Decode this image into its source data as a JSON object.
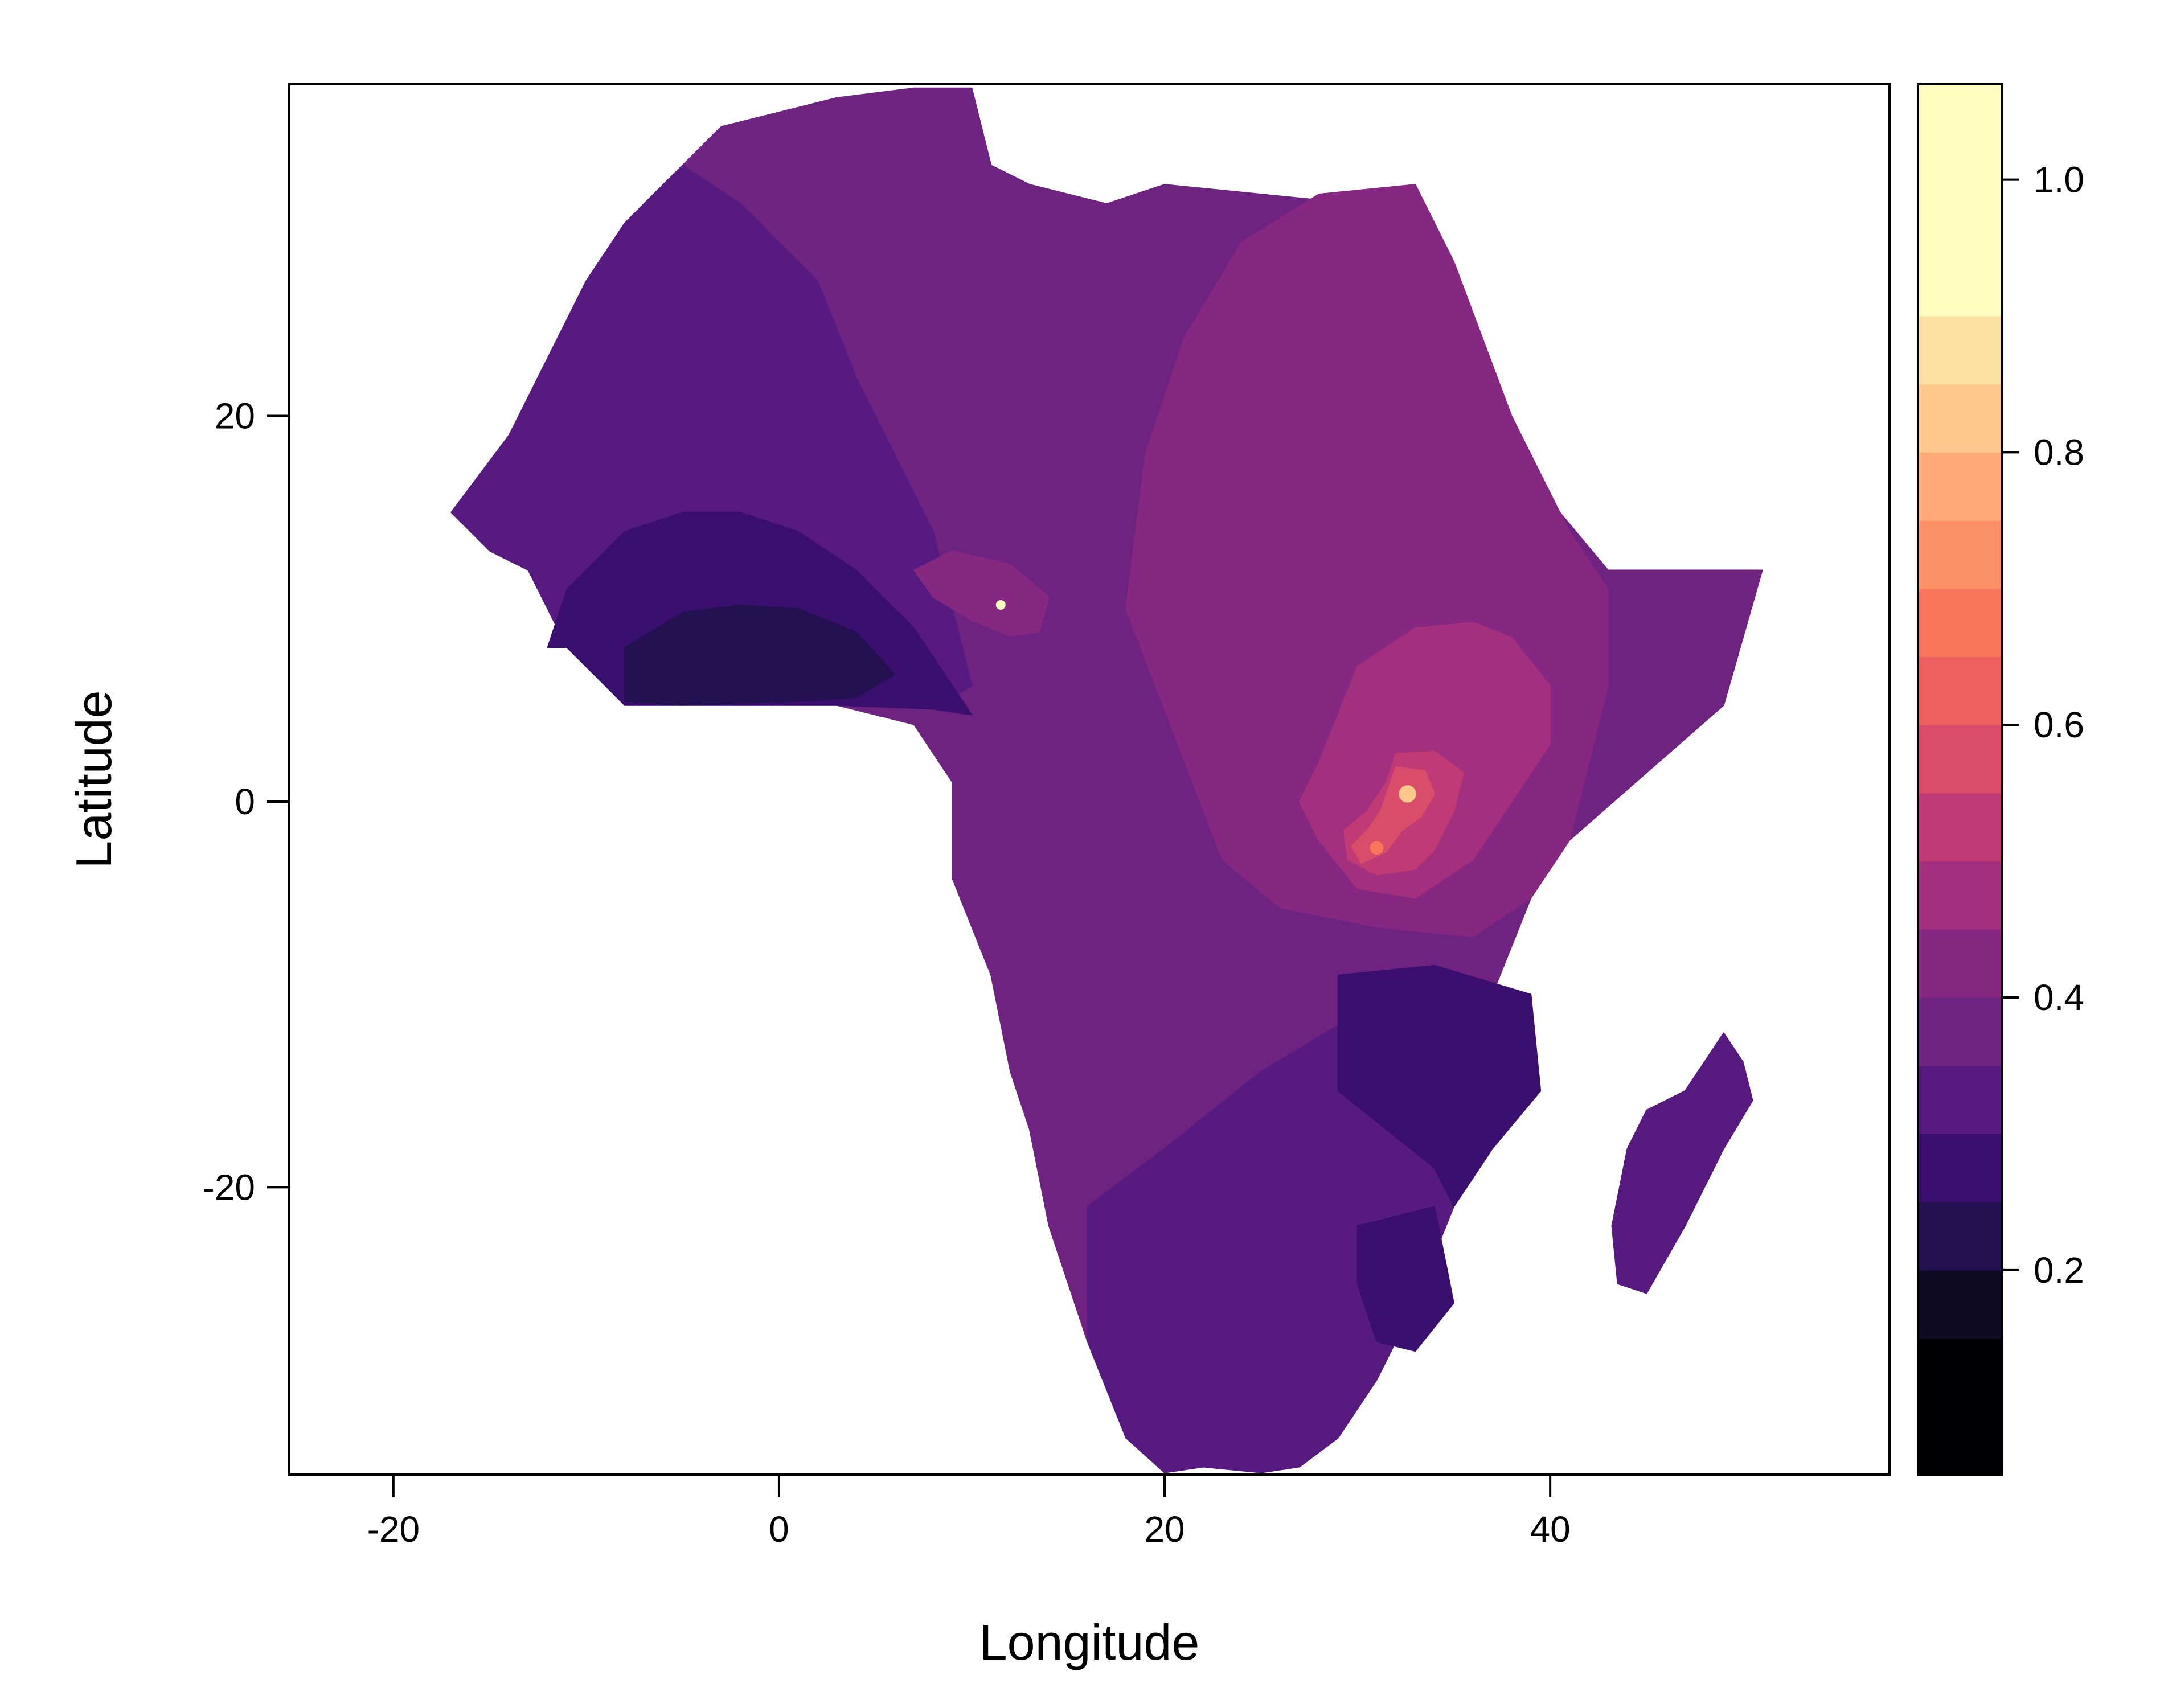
{
  "map": {
    "x_label": "Longitude",
    "y_label": "Latitude",
    "xlim": [
      -25.4,
      57.6
    ],
    "ylim": [
      -34.9,
      37.2
    ],
    "x_ticks": [
      -20,
      0,
      20,
      40
    ],
    "y_ticks": [
      -20,
      0,
      20
    ],
    "x_tick_labels": [
      "-20",
      "0",
      "20",
      "40"
    ],
    "y_tick_labels": [
      "-20",
      "0",
      "20"
    ],
    "background": "#ffffff"
  },
  "colorbar": {
    "range": [
      0.05,
      1.07
    ],
    "breaks": [
      0.05,
      0.15,
      0.2,
      0.25,
      0.3,
      0.35,
      0.4,
      0.45,
      0.5,
      0.55,
      0.6,
      0.65,
      0.7,
      0.75,
      0.8,
      0.85,
      0.9,
      0.95,
      1.0,
      1.07
    ],
    "colors": [
      "#000004",
      "#0f0b25",
      "#231151",
      "#3b0f70",
      "#561a80",
      "#6e2381",
      "#862882",
      "#a3307e",
      "#c03a76",
      "#d94d6a",
      "#ee6060",
      "#f8765c",
      "#fc9066",
      "#feab77",
      "#fec88c",
      "#fbe0a4",
      "#fcfdbf",
      "#fcfdbf",
      "#fcfdbf"
    ],
    "tick_values": [
      0.2,
      0.4,
      0.6,
      0.8,
      1.0
    ],
    "tick_labels": [
      "0.2",
      "0.4",
      "0.6",
      "0.8",
      "1.0"
    ]
  },
  "regions": [
    {
      "name": "base",
      "color": "#6e2381",
      "lons": [
        -17,
        -14,
        -12,
        -10,
        -8,
        -6,
        -3,
        -1,
        3,
        7,
        10,
        11,
        13,
        17,
        20,
        25,
        30,
        32,
        34,
        36,
        38,
        43,
        51,
        49,
        41,
        39,
        37,
        35,
        33,
        31,
        29,
        27,
        25,
        22,
        20,
        18,
        16,
        14,
        13,
        12,
        11,
        9,
        9,
        7,
        3,
        0,
        -5,
        -8,
        -11,
        -13,
        -15
      ],
      "lats": [
        15,
        19,
        23,
        27,
        30,
        32,
        35,
        35.5,
        36.5,
        37,
        37,
        33,
        32,
        31,
        32,
        31.5,
        31,
        31.5,
        30,
        24,
        18,
        12,
        12,
        5,
        -2,
        -5,
        -10,
        -15,
        -18,
        -21,
        -26,
        -30,
        -33,
        -34.5,
        -34.8,
        -33,
        -28,
        -22,
        -17,
        -14,
        -9,
        -4,
        1,
        4,
        5,
        5,
        5,
        5,
        8,
        12,
        13
      ]
    },
    {
      "name": "nw",
      "color": "#561a80",
      "lons": [
        -17,
        -14,
        -12,
        -10,
        -8,
        -6,
        -5,
        -2,
        2,
        4,
        6,
        8,
        9,
        10,
        8,
        3,
        0,
        -5,
        -8,
        -11,
        -13,
        -15
      ],
      "lats": [
        15,
        19,
        23,
        27,
        30,
        32,
        33,
        31,
        27,
        22,
        18,
        14,
        10,
        6,
        4.8,
        5,
        5,
        5,
        5,
        8,
        12,
        13
      ]
    },
    {
      "name": "wafrica",
      "color": "#3b0f70",
      "lons": [
        -12,
        -11,
        -8,
        -5,
        -2,
        1,
        4,
        7,
        9,
        10,
        8,
        3,
        0,
        -5,
        -8,
        -11
      ],
      "lats": [
        8,
        11,
        14,
        15,
        15,
        14,
        12,
        9,
        6,
        4.5,
        4.8,
        5,
        5,
        5,
        5,
        8
      ]
    },
    {
      "name": "coast",
      "color": "#231151",
      "lons": [
        -8,
        -5,
        -2,
        1,
        4,
        6,
        4,
        1,
        -2,
        -5,
        -8
      ],
      "lats": [
        8,
        9.8,
        10.2,
        10,
        8.8,
        6.6,
        5.4,
        5.2,
        5.1,
        5,
        5.2
      ]
    },
    {
      "name": "se",
      "color": "#561a80",
      "lons": [
        16,
        20,
        25,
        30,
        34,
        38,
        37,
        35,
        33,
        31,
        29,
        27,
        25,
        22,
        20,
        18,
        16
      ],
      "lats": [
        -21,
        -18,
        -14,
        -11,
        -9,
        -15,
        -18,
        -21,
        -26,
        -30,
        -33,
        -34.5,
        -34.8,
        -34.5,
        -34.8,
        -33,
        -28
      ]
    },
    {
      "name": "moz",
      "color": "#3b0f70",
      "lons": [
        29,
        34,
        39,
        39.5,
        37,
        35,
        34,
        29
      ],
      "lats": [
        -9,
        -8.5,
        -10,
        -15,
        -18,
        -21,
        -19,
        -15
      ]
    },
    {
      "name": "lim",
      "color": "#3b0f70",
      "lons": [
        30,
        34,
        35,
        33,
        31,
        30
      ],
      "lats": [
        -22,
        -21,
        -26,
        -28.5,
        -28,
        -25
      ]
    },
    {
      "name": "madagascar",
      "color": "#561a80",
      "lons": [
        49,
        50,
        50.5,
        49,
        47,
        45,
        43.5,
        43.2,
        44,
        45,
        47
      ],
      "lats": [
        -12,
        -13.5,
        -15.5,
        -18,
        -22,
        -25.5,
        -25,
        -22,
        -18,
        -16,
        -15
      ]
    },
    {
      "name": "east",
      "color": "#862882",
      "lons": [
        33,
        35,
        38,
        41,
        43,
        43,
        41,
        39,
        36,
        31,
        26,
        23,
        18,
        19,
        21,
        24,
        28
      ],
      "lats": [
        32,
        28,
        20,
        14,
        11,
        6,
        -2,
        -5,
        -7,
        -6.5,
        -5.5,
        -3,
        10,
        18,
        24,
        29,
        31.5
      ]
    },
    {
      "name": "lake",
      "color": "#a3307e",
      "lons": [
        30,
        33,
        36,
        38,
        40,
        40,
        38,
        36,
        33,
        30,
        28,
        27,
        28,
        29
      ],
      "lats": [
        7,
        9,
        9.3,
        8.5,
        6,
        3,
        0,
        -3,
        -5,
        -4.5,
        -2,
        0,
        2,
        4.5
      ]
    },
    {
      "name": "hot1",
      "color": "#c03a76",
      "lons": [
        32,
        34,
        35.5,
        35,
        34,
        33,
        31,
        29.5,
        29.3,
        30.5,
        31.5
      ],
      "lats": [
        2.5,
        2.6,
        1.5,
        -0.5,
        -2.5,
        -3.5,
        -3.8,
        -3,
        -1.5,
        -0.5,
        1
      ]
    },
    {
      "name": "hot2",
      "color": "#d94d6a",
      "lons": [
        32,
        33.5,
        34,
        33.3,
        32.3,
        31.5,
        30.2,
        29.7,
        30.5,
        31.2
      ],
      "lats": [
        1.8,
        1.6,
        0.4,
        -0.8,
        -1.5,
        -2.6,
        -3.2,
        -2.3,
        -1.5,
        -0.5
      ]
    },
    {
      "name": "cam",
      "color": "#862882",
      "lons": [
        7,
        9,
        12,
        14,
        13.5,
        12,
        10,
        8
      ],
      "lats": [
        12,
        13,
        12.3,
        10.6,
        8.8,
        8.6,
        9.4,
        10.6
      ]
    }
  ],
  "hotspots": [
    {
      "lon": 32.6,
      "lat": 0.4,
      "r": 0.45,
      "color": "#fec88c"
    },
    {
      "lon": 31.0,
      "lat": -2.4,
      "r": 0.35,
      "color": "#f8765c"
    },
    {
      "lon": 11.5,
      "lat": 10.2,
      "r": 0.25,
      "color": "#fcfdbf"
    }
  ]
}
